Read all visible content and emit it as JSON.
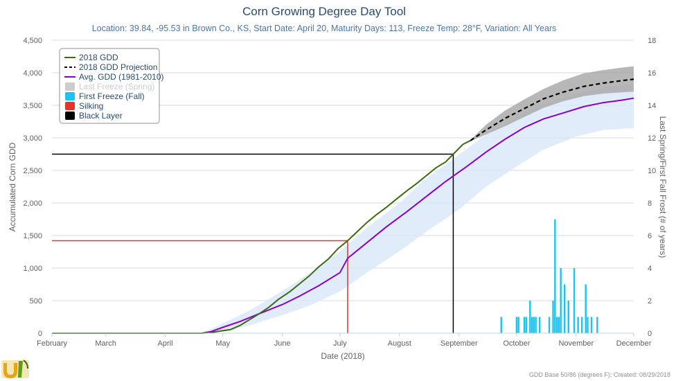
{
  "chart_data": {
    "type": "line",
    "title": "Corn Growing Degree Day Tool",
    "subtitle": "Location: 39.84, -95.53 in Brown Co., KS, Start Date: April 20, Maturity Days: 113, Freeze Temp: 28°F, Variation: All Years",
    "xlabel": "Date (2018)",
    "ylabel": "Accumulated Corn GDD",
    "y2label": "Last Spring/First Fall Frost (# of years)",
    "x_ticks": [
      "February",
      "March",
      "April",
      "May",
      "June",
      "July",
      "August",
      "September",
      "October",
      "November",
      "December"
    ],
    "x_tick_dates": [
      "2018-02-01",
      "2018-03-01",
      "2018-04-01",
      "2018-05-01",
      "2018-06-01",
      "2018-07-01",
      "2018-08-01",
      "2018-09-01",
      "2018-10-01",
      "2018-11-01",
      "2018-12-01"
    ],
    "xlim": [
      "2018-02-01",
      "2018-12-01"
    ],
    "ylim": [
      0,
      4500
    ],
    "y_ticks": [
      "0",
      "500",
      "1,000",
      "1,500",
      "2,000",
      "2,500",
      "3,000",
      "3,500",
      "4,000",
      "4,500"
    ],
    "y2lim": [
      0,
      18
    ],
    "y2_ticks": [
      "0",
      "2",
      "4",
      "6",
      "8",
      "10",
      "12",
      "14",
      "16",
      "18"
    ],
    "grid": true,
    "legend_position": "top-left",
    "legend": [
      {
        "label": "2018 GDD",
        "symbol": "line",
        "color": "#3a6b0f",
        "hidden": false
      },
      {
        "label": "2018 GDD Projection",
        "symbol": "dashed",
        "color": "#000000",
        "hidden": false
      },
      {
        "label": "Avg. GDD (1981-2010)",
        "symbol": "line",
        "color": "#8a00c8",
        "hidden": false
      },
      {
        "label": "Last Freeze (Spring)",
        "symbol": "box",
        "color": "#cccccc",
        "hidden": true
      },
      {
        "label": "First Freeze (Fall)",
        "symbol": "box",
        "color": "#1ac3f0",
        "hidden": false
      },
      {
        "label": "Silking",
        "symbol": "box",
        "color": "#e8322d",
        "hidden": false
      },
      {
        "label": "Black Layer",
        "symbol": "box",
        "color": "#000000",
        "hidden": false
      }
    ],
    "series": [
      {
        "name": "2018 GDD",
        "color": "#3a6b0f",
        "points": [
          [
            "2018-02-01",
            0
          ],
          [
            "2018-04-20",
            0
          ],
          [
            "2018-04-25",
            10
          ],
          [
            "2018-04-30",
            35
          ],
          [
            "2018-05-05",
            55
          ],
          [
            "2018-05-10",
            120
          ],
          [
            "2018-05-15",
            210
          ],
          [
            "2018-05-20",
            300
          ],
          [
            "2018-05-25",
            400
          ],
          [
            "2018-05-30",
            520
          ],
          [
            "2018-06-05",
            640
          ],
          [
            "2018-06-10",
            760
          ],
          [
            "2018-06-15",
            880
          ],
          [
            "2018-06-20",
            1020
          ],
          [
            "2018-06-25",
            1140
          ],
          [
            "2018-06-30",
            1300
          ],
          [
            "2018-07-05",
            1420
          ],
          [
            "2018-07-10",
            1560
          ],
          [
            "2018-07-15",
            1700
          ],
          [
            "2018-07-20",
            1820
          ],
          [
            "2018-07-25",
            1930
          ],
          [
            "2018-07-30",
            2050
          ],
          [
            "2018-08-05",
            2190
          ],
          [
            "2018-08-10",
            2300
          ],
          [
            "2018-08-15",
            2420
          ],
          [
            "2018-08-20",
            2540
          ],
          [
            "2018-08-25",
            2630
          ],
          [
            "2018-08-29",
            2750
          ],
          [
            "2018-09-03",
            2900
          ],
          [
            "2018-09-07",
            2960
          ]
        ]
      },
      {
        "name": "2018 GDD Projection",
        "color": "#000000",
        "points": [
          [
            "2018-09-07",
            2960
          ],
          [
            "2018-09-15",
            3120
          ],
          [
            "2018-09-25",
            3300
          ],
          [
            "2018-10-05",
            3450
          ],
          [
            "2018-10-15",
            3600
          ],
          [
            "2018-10-25",
            3700
          ],
          [
            "2018-11-05",
            3790
          ],
          [
            "2018-11-15",
            3840
          ],
          [
            "2018-11-25",
            3880
          ],
          [
            "2018-12-01",
            3900
          ]
        ]
      },
      {
        "name": "Avg. GDD (1981-2010)",
        "color": "#8a00c8",
        "points": [
          [
            "2018-04-20",
            0
          ],
          [
            "2018-04-25",
            25
          ],
          [
            "2018-05-01",
            90
          ],
          [
            "2018-05-10",
            180
          ],
          [
            "2018-05-20",
            300
          ],
          [
            "2018-06-01",
            440
          ],
          [
            "2018-06-10",
            570
          ],
          [
            "2018-06-20",
            730
          ],
          [
            "2018-07-01",
            930
          ],
          [
            "2018-07-05",
            1150
          ],
          [
            "2018-07-15",
            1390
          ],
          [
            "2018-07-25",
            1630
          ],
          [
            "2018-08-05",
            1870
          ],
          [
            "2018-08-15",
            2100
          ],
          [
            "2018-08-25",
            2330
          ],
          [
            "2018-09-05",
            2560
          ],
          [
            "2018-09-15",
            2780
          ],
          [
            "2018-09-25",
            2980
          ],
          [
            "2018-10-05",
            3160
          ],
          [
            "2018-10-15",
            3290
          ],
          [
            "2018-10-25",
            3380
          ],
          [
            "2018-11-05",
            3480
          ],
          [
            "2018-11-15",
            3540
          ],
          [
            "2018-11-25",
            3580
          ],
          [
            "2018-12-01",
            3610
          ]
        ]
      }
    ],
    "avg_range": {
      "name": "Avg. GDD range",
      "color": "#dce9f9",
      "upper": [
        [
          "2018-04-20",
          0
        ],
        [
          "2018-05-01",
          150
        ],
        [
          "2018-05-15",
          350
        ],
        [
          "2018-06-01",
          650
        ],
        [
          "2018-06-15",
          920
        ],
        [
          "2018-07-01",
          1260
        ],
        [
          "2018-07-15",
          1620
        ],
        [
          "2018-08-01",
          2000
        ],
        [
          "2018-08-15",
          2380
        ],
        [
          "2018-09-01",
          2740
        ],
        [
          "2018-09-15",
          3050
        ],
        [
          "2018-10-01",
          3320
        ],
        [
          "2018-10-15",
          3520
        ],
        [
          "2018-11-01",
          3680
        ],
        [
          "2018-11-15",
          3770
        ],
        [
          "2018-12-01",
          3820
        ]
      ],
      "lower": [
        [
          "2018-04-20",
          0
        ],
        [
          "2018-05-01",
          20
        ],
        [
          "2018-05-15",
          120
        ],
        [
          "2018-06-01",
          280
        ],
        [
          "2018-06-15",
          420
        ],
        [
          "2018-07-01",
          640
        ],
        [
          "2018-07-15",
          930
        ],
        [
          "2018-08-01",
          1260
        ],
        [
          "2018-08-15",
          1560
        ],
        [
          "2018-09-01",
          1900
        ],
        [
          "2018-09-15",
          2250
        ],
        [
          "2018-10-01",
          2560
        ],
        [
          "2018-10-15",
          2820
        ],
        [
          "2018-11-01",
          3020
        ],
        [
          "2018-11-15",
          3120
        ],
        [
          "2018-12-01",
          3150
        ]
      ]
    },
    "projection_range": {
      "name": "2018 GDD Projection range",
      "color": "#aaaaaa",
      "upper": [
        [
          "2018-09-07",
          2970
        ],
        [
          "2018-09-15",
          3200
        ],
        [
          "2018-09-25",
          3420
        ],
        [
          "2018-10-05",
          3590
        ],
        [
          "2018-10-15",
          3750
        ],
        [
          "2018-10-25",
          3880
        ],
        [
          "2018-11-05",
          3990
        ],
        [
          "2018-11-15",
          4040
        ],
        [
          "2018-11-25",
          4080
        ],
        [
          "2018-12-01",
          4100
        ]
      ],
      "lower": [
        [
          "2018-09-07",
          2950
        ],
        [
          "2018-09-15",
          3050
        ],
        [
          "2018-09-25",
          3180
        ],
        [
          "2018-10-05",
          3320
        ],
        [
          "2018-10-15",
          3460
        ],
        [
          "2018-10-25",
          3560
        ],
        [
          "2018-11-05",
          3640
        ],
        [
          "2018-11-15",
          3680
        ],
        [
          "2018-11-25",
          3700
        ],
        [
          "2018-12-01",
          3710
        ]
      ]
    },
    "silking": {
      "date": "2018-07-05",
      "gdd": 1420,
      "color": "#e8322d"
    },
    "black_layer": {
      "date": "2018-08-29",
      "gdd": 2750,
      "color": "#000000"
    },
    "first_freeze_fall": {
      "color": "#1ac3f0",
      "axis": "y2",
      "bars": [
        [
          "2018-09-23",
          1
        ],
        [
          "2018-10-01",
          1
        ],
        [
          "2018-10-02",
          1
        ],
        [
          "2018-10-05",
          1
        ],
        [
          "2018-10-06",
          1
        ],
        [
          "2018-10-08",
          2
        ],
        [
          "2018-10-09",
          1
        ],
        [
          "2018-10-10",
          1
        ],
        [
          "2018-10-11",
          1
        ],
        [
          "2018-10-13",
          1
        ],
        [
          "2018-10-18",
          1
        ],
        [
          "2018-10-20",
          2
        ],
        [
          "2018-10-21",
          7
        ],
        [
          "2018-10-22",
          1
        ],
        [
          "2018-10-23",
          1
        ],
        [
          "2018-10-24",
          4
        ],
        [
          "2018-10-26",
          3
        ],
        [
          "2018-10-28",
          2
        ],
        [
          "2018-10-31",
          4
        ],
        [
          "2018-11-02",
          1
        ],
        [
          "2018-11-04",
          1
        ],
        [
          "2018-11-06",
          3
        ],
        [
          "2018-11-07",
          1
        ],
        [
          "2018-11-09",
          1
        ],
        [
          "2018-11-12",
          1
        ]
      ]
    }
  },
  "footer": {
    "logo_text": "UI",
    "credit": "GDD Base 50/86 (degrees F); Created: 08/29/2018"
  }
}
